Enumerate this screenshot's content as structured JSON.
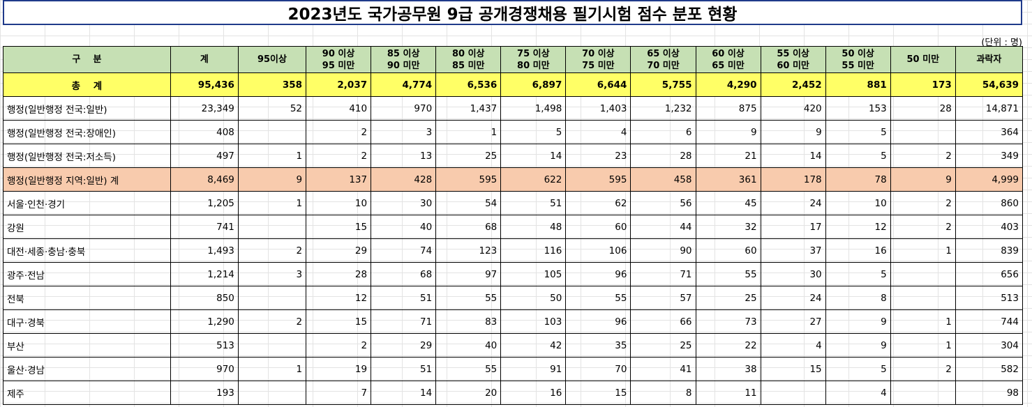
{
  "title": "2023년도 국가공무원 9급 공개경쟁채용 필기시험 점수 분포 현황",
  "unit": "(단위 : 명)",
  "columns": [
    {
      "line1": "구    분",
      "line2": ""
    },
    {
      "line1": "계",
      "line2": ""
    },
    {
      "line1": "95이상",
      "line2": ""
    },
    {
      "line1": "90 이상",
      "line2": "95 미만"
    },
    {
      "line1": "85 이상",
      "line2": "90 미만"
    },
    {
      "line1": "80 이상",
      "line2": "85 미만"
    },
    {
      "line1": "75 이상",
      "line2": "80 미만"
    },
    {
      "line1": "70 이상",
      "line2": "75 미만"
    },
    {
      "line1": "65 이상",
      "line2": "70 미만"
    },
    {
      "line1": "60 이상",
      "line2": "65 미만"
    },
    {
      "line1": "55 이상",
      "line2": "60 미만"
    },
    {
      "line1": "50 이상",
      "line2": "55 미만"
    },
    {
      "line1": "50 미만",
      "line2": ""
    },
    {
      "line1": "과락자",
      "line2": ""
    }
  ],
  "rows": [
    {
      "style": "total",
      "cells": [
        "총    계",
        "95,436",
        "358",
        "2,037",
        "4,774",
        "6,536",
        "6,897",
        "6,644",
        "5,755",
        "4,290",
        "2,452",
        "881",
        "173",
        "54,639"
      ]
    },
    {
      "style": "normal",
      "cells": [
        "행정(일반행정 전국:일반)",
        "23,349",
        "52",
        "410",
        "970",
        "1,437",
        "1,498",
        "1,403",
        "1,232",
        "875",
        "420",
        "153",
        "28",
        "14,871"
      ]
    },
    {
      "style": "normal",
      "cells": [
        "행정(일반행정 전국:장애인)",
        "408",
        "",
        "2",
        "3",
        "1",
        "5",
        "4",
        "6",
        "9",
        "9",
        "5",
        "",
        "364"
      ]
    },
    {
      "style": "normal",
      "cells": [
        "행정(일반행정 전국:저소득)",
        "497",
        "1",
        "2",
        "13",
        "25",
        "14",
        "23",
        "28",
        "21",
        "14",
        "5",
        "2",
        "349"
      ]
    },
    {
      "style": "sub",
      "cells": [
        "행정(일반행정 지역:일반) 계",
        "8,469",
        "9",
        "137",
        "428",
        "595",
        "622",
        "595",
        "458",
        "361",
        "178",
        "78",
        "9",
        "4,999"
      ]
    },
    {
      "style": "normal",
      "cells": [
        "서울·인천·경기",
        "1,205",
        "1",
        "10",
        "30",
        "54",
        "51",
        "62",
        "56",
        "45",
        "24",
        "10",
        "2",
        "860"
      ]
    },
    {
      "style": "normal",
      "cells": [
        "강원",
        "741",
        "",
        "15",
        "40",
        "68",
        "48",
        "60",
        "44",
        "32",
        "17",
        "12",
        "2",
        "403"
      ]
    },
    {
      "style": "normal",
      "cells": [
        "대전·세종·충남·충북",
        "1,493",
        "2",
        "29",
        "74",
        "123",
        "116",
        "106",
        "90",
        "60",
        "37",
        "16",
        "1",
        "839"
      ]
    },
    {
      "style": "normal",
      "cells": [
        "광주·전남",
        "1,214",
        "3",
        "28",
        "68",
        "97",
        "105",
        "96",
        "71",
        "55",
        "30",
        "5",
        "",
        "656"
      ]
    },
    {
      "style": "normal",
      "cells": [
        "전북",
        "850",
        "",
        "12",
        "51",
        "55",
        "50",
        "55",
        "57",
        "25",
        "24",
        "8",
        "",
        "513"
      ]
    },
    {
      "style": "normal",
      "cells": [
        "대구·경북",
        "1,290",
        "2",
        "15",
        "71",
        "83",
        "103",
        "96",
        "66",
        "73",
        "27",
        "9",
        "1",
        "744"
      ]
    },
    {
      "style": "normal",
      "cells": [
        "부산",
        "513",
        "",
        "2",
        "29",
        "40",
        "42",
        "35",
        "25",
        "22",
        "4",
        "9",
        "1",
        "304"
      ]
    },
    {
      "style": "normal",
      "cells": [
        "울산·경남",
        "970",
        "1",
        "19",
        "51",
        "55",
        "91",
        "70",
        "41",
        "38",
        "15",
        "5",
        "2",
        "582"
      ]
    },
    {
      "style": "normal",
      "cells": [
        "제주",
        "193",
        "",
        "7",
        "14",
        "20",
        "16",
        "15",
        "8",
        "11",
        "",
        "4",
        "",
        "98"
      ]
    }
  ],
  "colors": {
    "header_bg": "#c6e0b4",
    "total_bg": "#ffff66",
    "subtotal_bg": "#f8cbad",
    "title_border": "#1f3a8a"
  }
}
